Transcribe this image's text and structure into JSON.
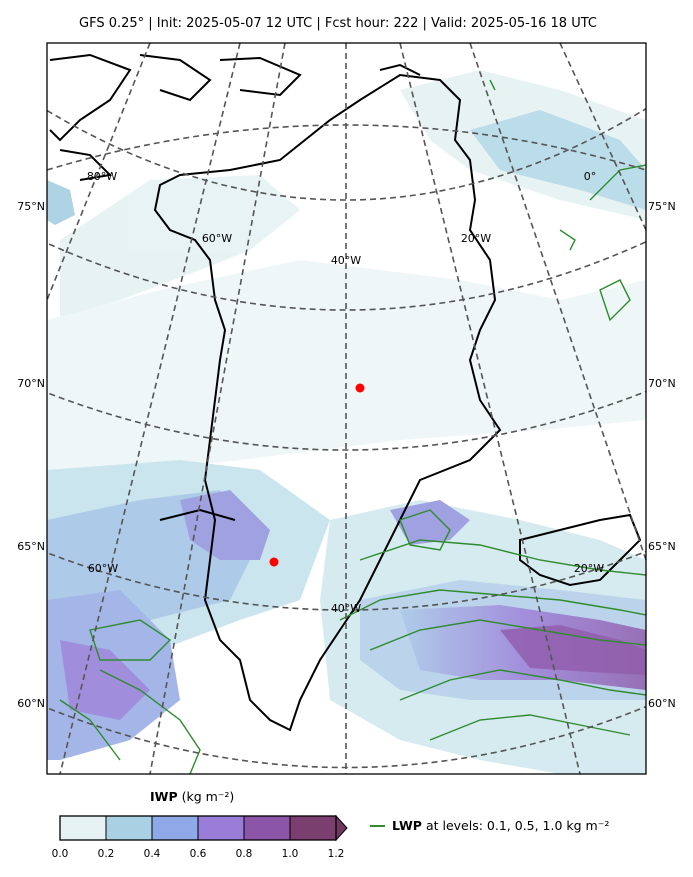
{
  "header": {
    "title": "GFS 0.25°  |  Init: 2025-05-07 12 UTC  |  Fcst hour: 222  |  Valid: 2025-05-16 18 UTC"
  },
  "map": {
    "projection": "polar stereographic",
    "lat_labels_left": [
      "75°N",
      "70°N",
      "65°N",
      "60°N"
    ],
    "lat_labels_right": [
      "75°N",
      "70°N",
      "65°N",
      "60°N"
    ],
    "lon_labels_inner": [
      "80°W",
      "60°W",
      "40°W",
      "20°W",
      "0°",
      "60°W",
      "40°W",
      "20°W"
    ],
    "markers": [
      {
        "name": "marker-summit",
        "color": "#ff0000"
      },
      {
        "name": "marker-southwest",
        "color": "#ff0000"
      }
    ],
    "coastline_color": "#000000",
    "contour_color": "#2e8b2e",
    "gridline_color": "#555555"
  },
  "colorbar": {
    "label_bold": "IWP",
    "label_unit": "(kg m⁻²)",
    "ticks": [
      "0.0",
      "0.2",
      "0.4",
      "0.6",
      "0.8",
      "1.0",
      "1.2"
    ],
    "colors": [
      "#e6f2f3",
      "#a9d1e3",
      "#8fa8e8",
      "#9a7dd8",
      "#8c56a8",
      "#7a3f6f"
    ],
    "extend": "max"
  },
  "legend": {
    "label_bold": "LWP",
    "label_rest": "at levels: 0.1, 0.5, 1.0  kg m⁻²"
  }
}
